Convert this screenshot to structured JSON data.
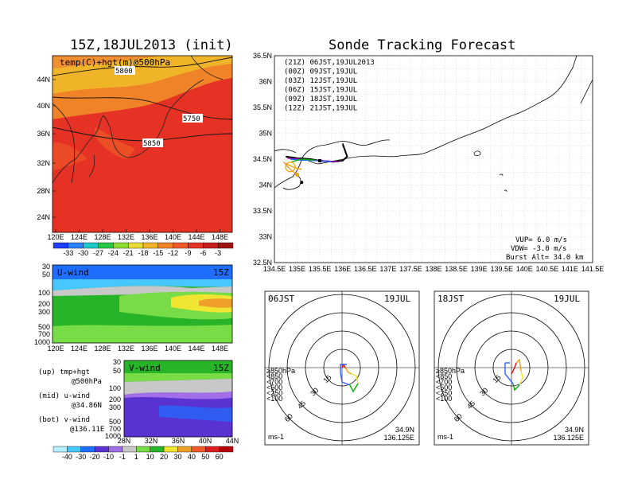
{
  "titles": {
    "left": "15Z,18JUL2013 (init)",
    "right": "Sonde Tracking Forecast"
  },
  "map_panel": {
    "label": "temp(C)+hgt(m)@500hPa",
    "contours": [
      "5800",
      "5750",
      "5850"
    ],
    "lat_ticks": [
      "44N",
      "40N",
      "36N",
      "32N",
      "28N",
      "24N"
    ],
    "lon_ticks": [
      "120E",
      "124E",
      "128E",
      "132E",
      "136E",
      "140E",
      "144E",
      "148E"
    ],
    "colorbar": [
      "-33",
      "-30",
      "-27",
      "-24",
      "-21",
      "-18",
      "-15",
      "-12",
      "-9",
      "-6",
      "-3"
    ]
  },
  "uwind_panel": {
    "label": "U-wind",
    "time": "15Z",
    "p_ticks": [
      "30",
      "50",
      "100",
      "200",
      "300",
      "500",
      "700",
      "1000"
    ],
    "lon_ticks": [
      "120E",
      "124E",
      "128E",
      "132E",
      "136E",
      "140E",
      "144E",
      "148E"
    ]
  },
  "vwind_panel": {
    "label": "V-wind",
    "time": "15Z",
    "p_ticks": [
      "30",
      "50",
      "100",
      "200",
      "300",
      "500",
      "700",
      "1000"
    ],
    "lat_ticks": [
      "28N",
      "32N",
      "36N",
      "40N",
      "44N"
    ],
    "colorbar": [
      "-40",
      "-30",
      "-20",
      "-10",
      "-1",
      "1",
      "10",
      "20",
      "30",
      "40",
      "50",
      "60"
    ]
  },
  "notes": {
    "up": "(up)  tmp+hgt",
    "up2": "@500hPa",
    "mid": "(mid) u-wind",
    "mid2": "@34.86N",
    "bot": "(bot) v-wind",
    "bot2": "@136.11E"
  },
  "track_map": {
    "legend": [
      {
        "text": "(21Z)  06JST,19JUL2013",
        "color": "#000000"
      },
      {
        "text": "(00Z)  09JST,19JUL",
        "color": "#a000c0"
      },
      {
        "text": "(03Z)  12JST,19JUL",
        "color": "#3060ff"
      },
      {
        "text": "(06Z)  15JST,19JUL",
        "color": "#00b000"
      },
      {
        "text": "(09Z)  18JST,19JUL",
        "color": "#f0a000"
      },
      {
        "text": "(12Z)  21JST,19JUL",
        "color": "#e8a040"
      }
    ],
    "lat_ticks": [
      "36.5N",
      "36N",
      "35.5N",
      "35N",
      "34.5N",
      "34N",
      "33.5N",
      "33N",
      "32.5N"
    ],
    "lon_ticks": [
      "134.5E",
      "135E",
      "135.5E",
      "136E",
      "136.5E",
      "137E",
      "137.5E",
      "138E",
      "138.5E",
      "139E",
      "139.5E",
      "140E",
      "140.5E",
      "141E",
      "141.5E"
    ],
    "params": [
      "VUP= 6.0 m/s",
      "VDW= -3.0 m/s",
      "Burst Alt= 34.0 km"
    ]
  },
  "hodo_left": {
    "time": "06JST",
    "date": "19JUL",
    "rings": [
      "15",
      "30",
      "45",
      "60"
    ],
    "levels": [
      "≥850hPa",
      "<850",
      "<700",
      "<500",
      "<250",
      "<100"
    ],
    "unit": "ms-1",
    "lat": "34.9N",
    "lon": "136.125E"
  },
  "hodo_right": {
    "time": "18JST",
    "date": "19JUL",
    "rings": [
      "15",
      "30",
      "45",
      "60"
    ],
    "levels": [
      "≥850hPa",
      "<850",
      "<700",
      "<500",
      "<250",
      "<100"
    ],
    "unit": "ms-1",
    "lat": "34.9N",
    "lon": "136.125E"
  },
  "colors": {
    "temp_scale": [
      "#1e3cff",
      "#2a82ff",
      "#1ec8c8",
      "#28c846",
      "#8cdc32",
      "#e6dc32",
      "#f0b428",
      "#f08228",
      "#f05a28",
      "#e63224",
      "#c81e1e"
    ],
    "wind_scale": [
      "#b4f0ff",
      "#46c8ff",
      "#1e6eff",
      "#5a32d2",
      "#a06ee6",
      "#c8c8c8",
      "#78dc46",
      "#28b428",
      "#f0e632",
      "#f0a028",
      "#f05a28",
      "#dc1e1e"
    ]
  },
  "chart_data": [
    {
      "type": "heatmap",
      "title": "15Z,18JUL2013 (init)",
      "label": "temp(C)+hgt(m)@500hPa",
      "xlim": [
        120,
        150
      ],
      "ylim": [
        22,
        47
      ],
      "contours": [
        5750,
        5800,
        5850
      ]
    },
    {
      "type": "heatmap",
      "label": "U-wind",
      "xlim": [
        120,
        150
      ],
      "ylim": [
        1000,
        30
      ],
      "log_y": true
    },
    {
      "type": "heatmap",
      "label": "V-wind",
      "xlim": [
        28,
        44
      ],
      "ylim": [
        1000,
        30
      ],
      "log_y": true
    },
    {
      "type": "line",
      "title": "Sonde Tracking Forecast",
      "xlim": [
        134.5,
        141.5
      ],
      "ylim": [
        32.5,
        36.5
      ],
      "series": [
        {
          "name": "(21Z)  06JST,19JUL2013",
          "x": [
            134.75,
            135.0,
            135.3,
            135.5,
            135.8,
            136.0,
            136.1,
            136.0
          ],
          "y": [
            34.55,
            34.52,
            34.5,
            34.47,
            34.45,
            34.47,
            34.55,
            34.8
          ]
        },
        {
          "name": "(00Z)  09JST,19JUL",
          "x": [
            134.78,
            135.05,
            135.4,
            135.7,
            135.9
          ],
          "y": [
            34.52,
            34.5,
            34.48,
            34.46,
            34.45
          ]
        },
        {
          "name": "(03Z)  12JST,19JUL",
          "x": [
            134.85,
            135.1,
            135.45,
            135.75
          ],
          "y": [
            34.5,
            34.48,
            34.47,
            34.45
          ]
        },
        {
          "name": "(06Z)  15JST,19JUL",
          "x": [
            134.88,
            135.1,
            135.4
          ],
          "y": [
            34.45,
            34.5,
            34.48
          ]
        },
        {
          "name": "(09Z)  18JST,19JUL",
          "x": [
            134.75,
            134.9,
            135.1
          ],
          "y": [
            34.42,
            34.35,
            34.3
          ]
        },
        {
          "name": "(12Z)  21JST,19JUL",
          "x": [
            134.7,
            134.85,
            135.0
          ],
          "y": [
            34.45,
            34.3,
            34.2
          ]
        }
      ]
    }
  ]
}
